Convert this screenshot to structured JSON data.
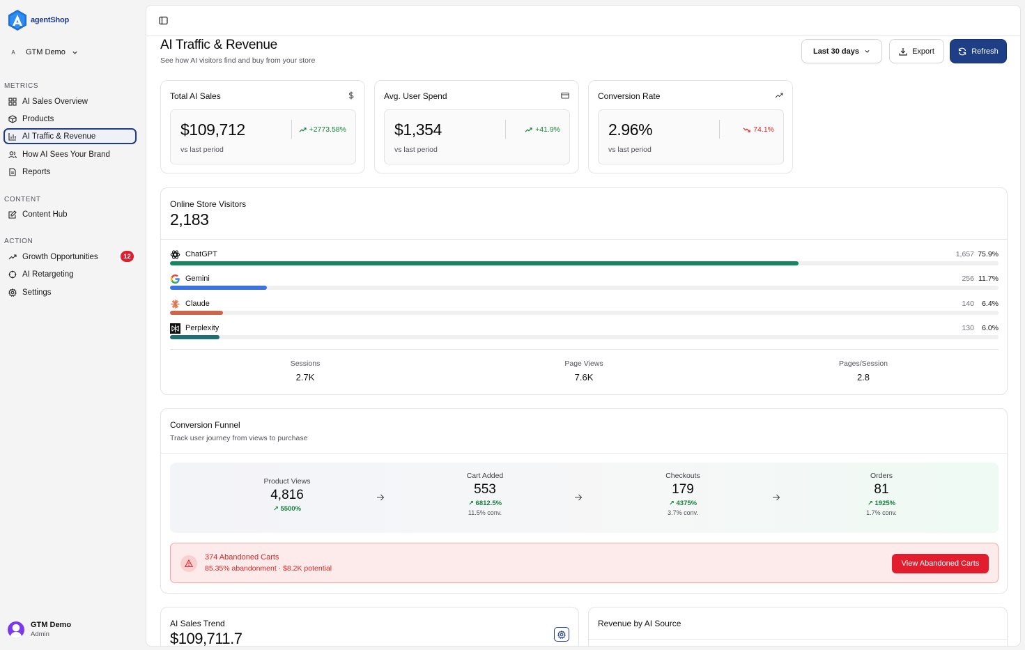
{
  "brand": {
    "name": "agentShop"
  },
  "workspace": {
    "initial": "A",
    "name": "GTM Demo"
  },
  "sidebar": {
    "sections": [
      {
        "label": "METRICS",
        "items": [
          {
            "label": "AI Sales Overview",
            "icon": "grid-icon"
          },
          {
            "label": "Products",
            "icon": "box-icon"
          },
          {
            "label": "AI Traffic & Revenue",
            "icon": "bar-chart-icon",
            "active": true
          },
          {
            "label": "How AI Sees Your Brand",
            "icon": "users-icon"
          },
          {
            "label": "Reports",
            "icon": "file-icon"
          }
        ]
      },
      {
        "label": "CONTENT",
        "items": [
          {
            "label": "Content Hub",
            "icon": "edit-icon"
          }
        ]
      },
      {
        "label": "ACTION",
        "items": [
          {
            "label": "Growth Opportunities",
            "icon": "trending-up-icon",
            "badge": "12"
          },
          {
            "label": "AI Retargeting",
            "icon": "crosshair-icon"
          },
          {
            "label": "Settings",
            "icon": "gear-icon"
          }
        ]
      }
    ]
  },
  "user": {
    "name": "GTM Demo",
    "role": "Admin"
  },
  "header": {
    "title": "AI Traffic & Revenue",
    "subtitle": "See how AI visitors find and buy from your store",
    "range": "Last 30 days",
    "export": "Export",
    "refresh": "Refresh"
  },
  "kpis": [
    {
      "title": "Total AI Sales",
      "icon": "dollar-icon",
      "value": "$109,712",
      "delta": "+2773.58%",
      "trend": "up",
      "note": "vs last period"
    },
    {
      "title": "Avg. User Spend",
      "icon": "credit-card-icon",
      "value": "$1,354",
      "delta": "+41.9%",
      "trend": "up",
      "note": "vs last period"
    },
    {
      "title": "Conversion Rate",
      "icon": "trending-up-icon",
      "value": "2.96%",
      "delta": "74.1%",
      "trend": "down",
      "note": "vs last period"
    }
  ],
  "visitors": {
    "title": "Online Store Visitors",
    "total": "2,183",
    "sources": [
      {
        "name": "ChatGPT",
        "count": "1,657",
        "pct": "75.9%",
        "share": 0.759,
        "color": "#15875f",
        "icon": "chatgpt-logo"
      },
      {
        "name": "Gemini",
        "count": "256",
        "pct": "11.7%",
        "share": 0.117,
        "color": "#3b73e0",
        "icon": "google-logo"
      },
      {
        "name": "Claude",
        "count": "140",
        "pct": "6.4%",
        "share": 0.064,
        "color": "#c9664b",
        "icon": "claude-logo"
      },
      {
        "name": "Perplexity",
        "count": "130",
        "pct": "6.0%",
        "share": 0.06,
        "color": "#1e6f74",
        "icon": "perplexity-logo"
      }
    ],
    "stats": [
      {
        "label": "Sessions",
        "value": "2.7K"
      },
      {
        "label": "Page Views",
        "value": "7.6K"
      },
      {
        "label": "Pages/Session",
        "value": "2.8"
      }
    ]
  },
  "funnel": {
    "title": "Conversion Funnel",
    "subtitle": "Track user journey from views to purchase",
    "steps": [
      {
        "label": "Product Views",
        "value": "4,816",
        "delta": "5500%",
        "conv": ""
      },
      {
        "label": "Cart Added",
        "value": "553",
        "delta": "6812.5%",
        "conv": "11.5% conv."
      },
      {
        "label": "Checkouts",
        "value": "179",
        "delta": "4375%",
        "conv": "3.7% conv."
      },
      {
        "label": "Orders",
        "value": "81",
        "delta": "1925%",
        "conv": "1.7% conv."
      }
    ],
    "alert": {
      "title": "374 Abandoned Carts",
      "detail": "85.35% abandonment · $8.2K potential",
      "button": "View Abandoned Carts"
    }
  },
  "trend": {
    "title": "AI Sales Trend",
    "value": "$109,711.7"
  },
  "revenue_by_source": {
    "title": "Revenue by AI Source"
  }
}
